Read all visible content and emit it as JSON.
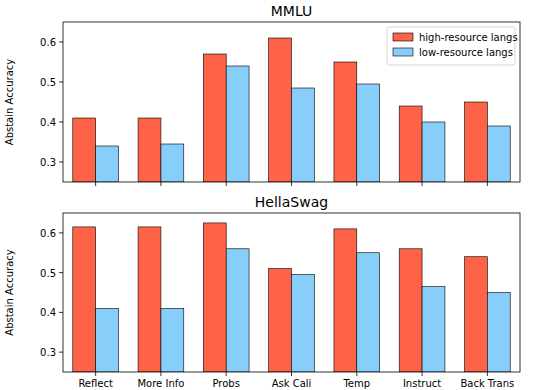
{
  "chart_data": [
    {
      "type": "bar",
      "title": "MMLU",
      "y_label": "Abstain Accuracy",
      "categories": [
        "Reflect",
        "More Info",
        "Probs",
        "Ask Cali",
        "Temp",
        "Instruct",
        "Back Trans"
      ],
      "series": [
        {
          "name": "high-resource langs",
          "color": "#ff6347",
          "values": [
            0.41,
            0.41,
            0.57,
            0.61,
            0.55,
            0.44,
            0.45
          ]
        },
        {
          "name": "low-resource langs",
          "color": "#87cefa",
          "values": [
            0.34,
            0.345,
            0.54,
            0.485,
            0.495,
            0.4,
            0.39
          ]
        }
      ],
      "ylim": [
        0.25,
        0.65
      ],
      "yticks": [
        0.3,
        0.4,
        0.5,
        0.6
      ],
      "legend": "upper right",
      "tick_labels": "y"
    },
    {
      "type": "bar",
      "title": "HellaSwag",
      "y_label": "Abstain Accuracy",
      "categories": [
        "Reflect",
        "More Info",
        "Probs",
        "Ask Cali",
        "Temp",
        "Instruct",
        "Back Trans"
      ],
      "series": [
        {
          "color": "#ff6347",
          "values": [
            0.615,
            0.615,
            0.625,
            0.51,
            0.61,
            0.56,
            0.54
          ]
        },
        {
          "color": "#87cefa",
          "values": [
            0.41,
            0.41,
            0.56,
            0.495,
            0.55,
            0.465,
            0.45
          ]
        }
      ],
      "ylim": [
        0.25,
        0.65
      ],
      "yticks": [
        0.3,
        0.4,
        0.5,
        0.6
      ]
    }
  ]
}
